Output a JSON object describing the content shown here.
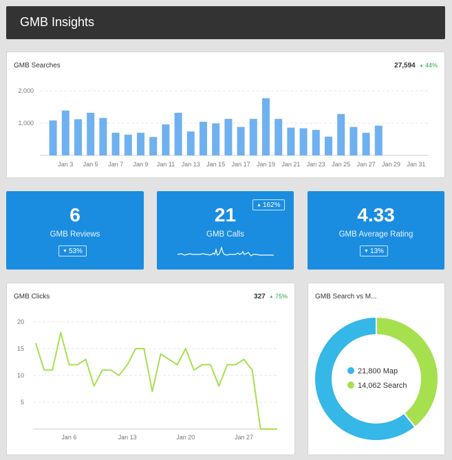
{
  "header": {
    "title": "GMB Insights"
  },
  "searches": {
    "title": "GMB Searches",
    "total": "27,594",
    "delta": "44%",
    "y_ticks": [
      "2,000",
      "1,000"
    ],
    "x_ticks": [
      "Jan 3",
      "Jan 5",
      "Jan 7",
      "Jan 9",
      "Jan 11",
      "Jan 13",
      "Jan 15",
      "Jan 17",
      "Jan 19",
      "Jan 21",
      "Jan 23",
      "Jan 25",
      "Jan 27",
      "Jan 29",
      "Jan 31"
    ]
  },
  "kpis": [
    {
      "value": "6",
      "label": "GMB Reviews",
      "delta": "53%",
      "direction": "down"
    },
    {
      "value": "21",
      "label": "GMB Calls",
      "delta": "162%",
      "direction": "up"
    },
    {
      "value": "4.33",
      "label": "GMB Average Rating",
      "delta": "13%",
      "direction": "down"
    }
  ],
  "clicks": {
    "title": "GMB Clicks",
    "total": "327",
    "delta": "75%",
    "y_ticks": [
      "20",
      "15",
      "10",
      "5"
    ],
    "x_ticks": [
      "Jan 6",
      "Jan 13",
      "Jan 20",
      "Jan 27"
    ]
  },
  "donut": {
    "title": "GMB Search vs M...",
    "legend": [
      {
        "label": "21,800 Map",
        "color": "#35b7e8"
      },
      {
        "label": "14,062 Search",
        "color": "#a6e04f"
      }
    ]
  },
  "colors": {
    "bar": "#6fb1f0",
    "line": "#a6e04f",
    "kpi": "#1a8de0",
    "positive": "#2ea84a"
  },
  "chart_data": [
    {
      "type": "bar",
      "title": "GMB Searches",
      "categories": [
        "Jan 2",
        "Jan 3",
        "Jan 4",
        "Jan 5",
        "Jan 6",
        "Jan 7",
        "Jan 8",
        "Jan 9",
        "Jan 10",
        "Jan 11",
        "Jan 12",
        "Jan 13",
        "Jan 14",
        "Jan 15",
        "Jan 16",
        "Jan 17",
        "Jan 18",
        "Jan 19",
        "Jan 20",
        "Jan 21",
        "Jan 22",
        "Jan 23",
        "Jan 24",
        "Jan 25",
        "Jan 26",
        "Jan 27",
        "Jan 28",
        "Jan 29",
        "Jan 30",
        "Jan 31"
      ],
      "values": [
        1080,
        1390,
        1120,
        1320,
        1160,
        700,
        640,
        700,
        570,
        960,
        1320,
        740,
        1040,
        990,
        1130,
        880,
        1130,
        1770,
        1130,
        860,
        840,
        790,
        580,
        1280,
        880,
        700,
        920,
        0,
        0,
        0
      ],
      "ylim": [
        0,
        2000
      ],
      "grid": true
    },
    {
      "type": "line",
      "title": "GMB Clicks",
      "x": [
        "Jan 2",
        "Jan 3",
        "Jan 4",
        "Jan 5",
        "Jan 6",
        "Jan 7",
        "Jan 8",
        "Jan 9",
        "Jan 10",
        "Jan 11",
        "Jan 12",
        "Jan 13",
        "Jan 14",
        "Jan 15",
        "Jan 16",
        "Jan 17",
        "Jan 18",
        "Jan 19",
        "Jan 20",
        "Jan 21",
        "Jan 22",
        "Jan 23",
        "Jan 24",
        "Jan 25",
        "Jan 26",
        "Jan 27",
        "Jan 28",
        "Jan 29",
        "Jan 30",
        "Jan 31"
      ],
      "values": [
        16,
        11,
        11,
        18,
        12,
        12,
        13,
        8,
        11,
        11,
        10,
        12,
        15,
        15,
        7,
        14,
        13,
        12,
        15,
        11,
        12,
        12,
        8,
        12,
        12,
        13,
        11,
        0,
        0,
        0
      ],
      "ylim": [
        0,
        20
      ],
      "grid": true
    },
    {
      "type": "pie",
      "title": "GMB Search vs M...",
      "labels": [
        "Map",
        "Search"
      ],
      "values": [
        21800,
        14062
      ],
      "donut": true
    }
  ]
}
